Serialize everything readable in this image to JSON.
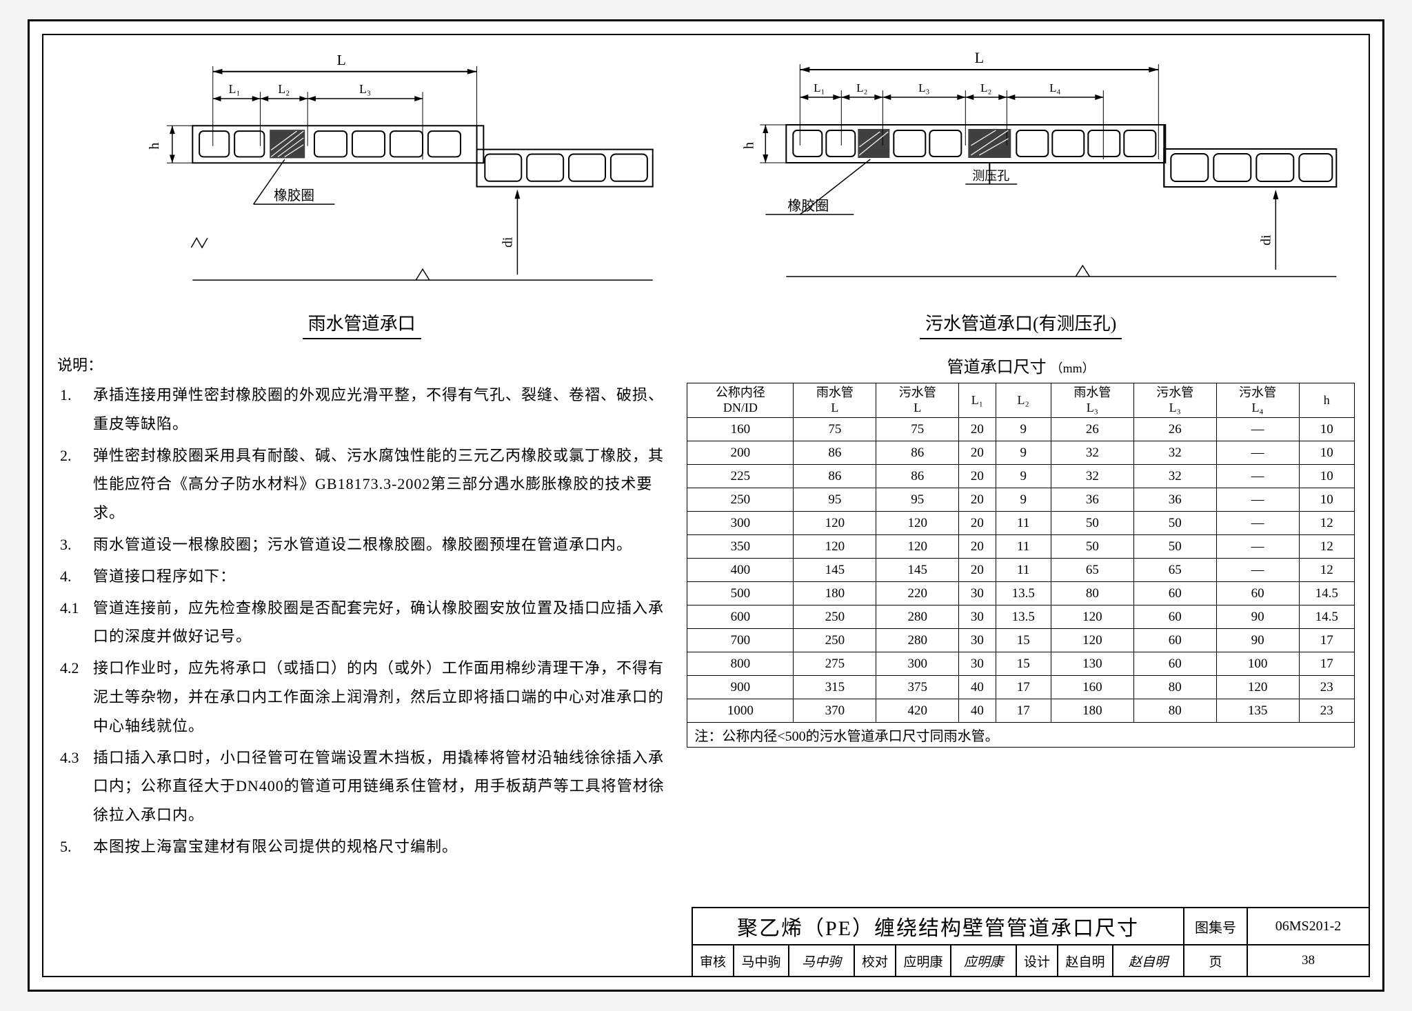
{
  "diagram_left": {
    "caption": "雨水管道承口",
    "labels": {
      "L": "L",
      "L1": "L₁",
      "L2": "L₂",
      "L3": "L₃",
      "h": "h",
      "di": "di",
      "rubber_ring": "橡胶圈"
    }
  },
  "diagram_right": {
    "caption": "污水管道承口(有测压孔)",
    "labels": {
      "L": "L",
      "L1": "L₁",
      "L2": "L₂",
      "L3": "L₃",
      "L4": "L₄",
      "h": "h",
      "di": "di",
      "rubber_ring": "橡胶圈",
      "pressure_hole": "测压孔"
    }
  },
  "notes_heading": "说明：",
  "notes": [
    {
      "num": "1.",
      "txt": "承插连接用弹性密封橡胶圈的外观应光滑平整，不得有气孔、裂缝、卷褶、破损、重皮等缺陷。"
    },
    {
      "num": "2.",
      "txt": "弹性密封橡胶圈采用具有耐酸、碱、污水腐蚀性能的三元乙丙橡胶或氯丁橡胶，其性能应符合《高分子防水材料》GB18173.3-2002第三部分遇水膨胀橡胶的技术要求。"
    },
    {
      "num": "3.",
      "txt": "雨水管道设一根橡胶圈；污水管道设二根橡胶圈。橡胶圈预埋在管道承口内。"
    },
    {
      "num": "4.",
      "txt": "管道接口程序如下："
    },
    {
      "num": "4.1",
      "txt": "管道连接前，应先检查橡胶圈是否配套完好，确认橡胶圈安放位置及插口应插入承口的深度并做好记号。"
    },
    {
      "num": "4.2",
      "txt": "接口作业时，应先将承口（或插口）的内（或外）工作面用棉纱清理干净，不得有泥土等杂物，并在承口内工作面涂上润滑剂，然后立即将插口端的中心对准承口的中心轴线就位。"
    },
    {
      "num": "4.3",
      "txt": "插口插入承口时，小口径管可在管端设置木挡板，用撬棒将管材沿轴线徐徐插入承口内；公称直径大于DN400的管道可用链绳系住管材，用手板葫芦等工具将管材徐徐拉入承口内。"
    },
    {
      "num": "5.",
      "txt": "本图按上海富宝建材有限公司提供的规格尺寸编制。"
    }
  ],
  "table": {
    "title": "管道承口尺寸",
    "unit": "（mm）",
    "header": {
      "c0a": "公称内径",
      "c0b": "DN/ID",
      "c1a": "雨水管",
      "c1b": "L",
      "c2a": "污水管",
      "c2b": "L",
      "c3": "L₁",
      "c4": "L₂",
      "c5a": "雨水管",
      "c5b": "L₃",
      "c6a": "污水管",
      "c6b": "L₃",
      "c7a": "污水管",
      "c7b": "L₄",
      "c8": "h"
    },
    "rows": [
      [
        "160",
        "75",
        "75",
        "20",
        "9",
        "26",
        "26",
        "—",
        "10"
      ],
      [
        "200",
        "86",
        "86",
        "20",
        "9",
        "32",
        "32",
        "—",
        "10"
      ],
      [
        "225",
        "86",
        "86",
        "20",
        "9",
        "32",
        "32",
        "—",
        "10"
      ],
      [
        "250",
        "95",
        "95",
        "20",
        "9",
        "36",
        "36",
        "—",
        "10"
      ],
      [
        "300",
        "120",
        "120",
        "20",
        "11",
        "50",
        "50",
        "—",
        "12"
      ],
      [
        "350",
        "120",
        "120",
        "20",
        "11",
        "50",
        "50",
        "—",
        "12"
      ],
      [
        "400",
        "145",
        "145",
        "20",
        "11",
        "65",
        "65",
        "—",
        "12"
      ],
      [
        "500",
        "180",
        "220",
        "30",
        "13.5",
        "80",
        "60",
        "60",
        "14.5"
      ],
      [
        "600",
        "250",
        "280",
        "30",
        "13.5",
        "120",
        "60",
        "90",
        "14.5"
      ],
      [
        "700",
        "250",
        "280",
        "30",
        "15",
        "120",
        "60",
        "90",
        "17"
      ],
      [
        "800",
        "275",
        "300",
        "30",
        "15",
        "130",
        "60",
        "100",
        "17"
      ],
      [
        "900",
        "315",
        "375",
        "40",
        "17",
        "160",
        "80",
        "120",
        "23"
      ],
      [
        "1000",
        "370",
        "420",
        "40",
        "17",
        "180",
        "80",
        "135",
        "23"
      ]
    ],
    "footnote": "注：公称内径<500的污水管道承口尺寸同雨水管。"
  },
  "titleblock": {
    "main": "聚乙烯（PE）缠绕结构壁管管道承口尺寸",
    "atlas_label": "图集号",
    "atlas_value": "06MS201-2",
    "row2": {
      "review_l": "审核",
      "review_n": "马中驹",
      "review_s": "马中驹",
      "proof_l": "校对",
      "proof_n": "应明康",
      "proof_s": "应明康",
      "design_l": "设计",
      "design_n": "赵自明",
      "design_s": "赵自明"
    },
    "page_label": "页",
    "page_value": "38"
  },
  "colors": {
    "line": "#000000",
    "bg": "#ffffff"
  }
}
